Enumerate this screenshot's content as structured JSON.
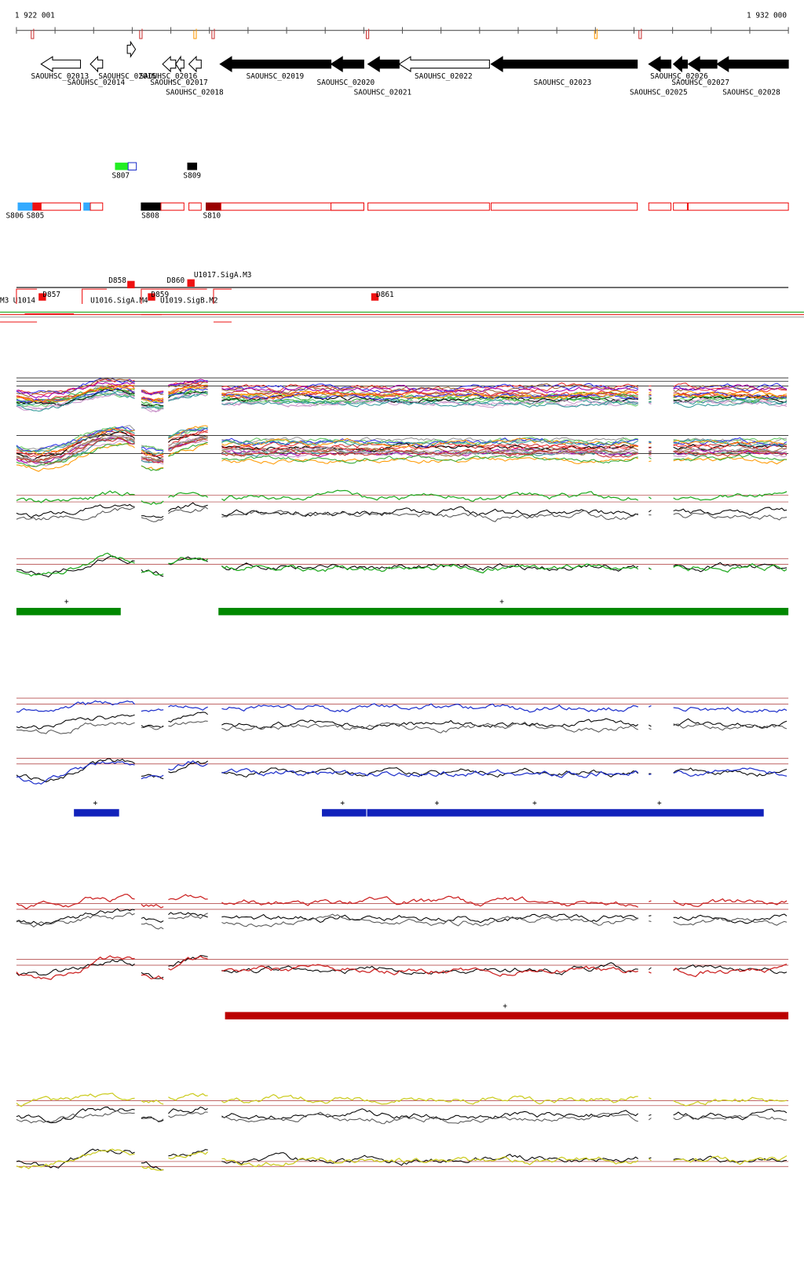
{
  "header": {
    "start": "1 922 001",
    "end": "1 932 000"
  },
  "genes": [
    "SAOUHSC_02013",
    "SAOUHSC_02014",
    "SAOUHSC_02015",
    "SAOUHSC_02016",
    "SAOUHSC_02017",
    "SAOUHSC_02018",
    "SAOUHSC_02019",
    "SAOUHSC_02020",
    "SAOUHSC_02021",
    "SAOUHSC_02022",
    "SAOUHSC_02023",
    "SAOUHSC_02025",
    "SAOUHSC_02026",
    "SAOUHSC_02027",
    "SAOUHSC_02028"
  ],
  "segments": [
    "S807",
    "S809",
    "S806",
    "S805",
    "S808",
    "S810"
  ],
  "sites": [
    "D857",
    "D858",
    "D859",
    "D860",
    "D861"
  ],
  "units": [
    "U1017.SigA.M3",
    "M3",
    "U1014",
    "U1016.SigA.M4",
    "U1019.SigB.M2"
  ],
  "strand_marks": [
    "+",
    "+",
    "+",
    "+",
    "+",
    "+",
    "+",
    "+"
  ]
}
